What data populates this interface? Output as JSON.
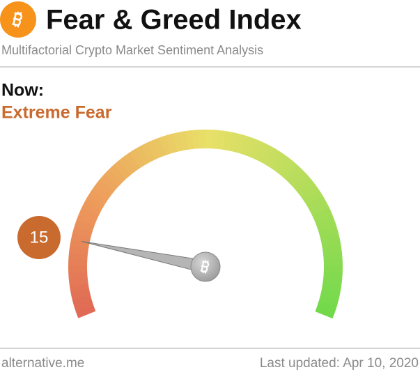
{
  "chart_data": {
    "type": "gauge",
    "title": "Fear & Greed Index",
    "subtitle": "Multifactorial Crypto Market Sentiment Analysis",
    "label": "Now:",
    "classification": "Extreme Fear",
    "value": 15,
    "ylim": [
      0,
      100
    ],
    "color": "#c96a2f"
  },
  "footer": {
    "source": "alternative.me",
    "updated": "Last updated: Apr 10, 2020"
  }
}
